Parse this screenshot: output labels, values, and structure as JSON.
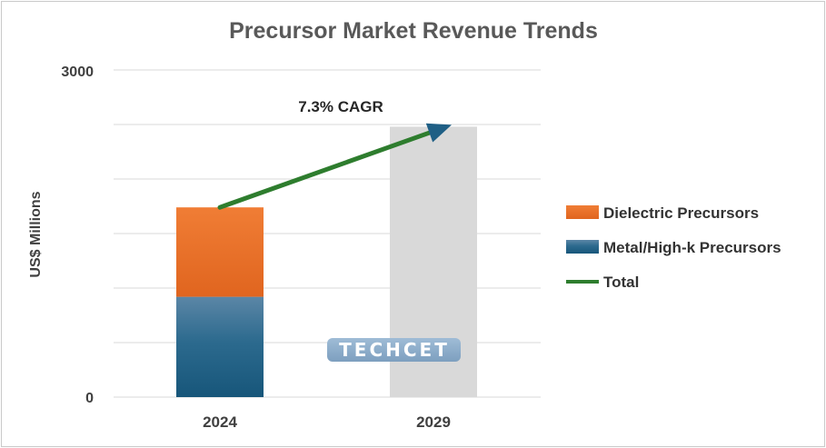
{
  "colors": {
    "dielectric": "#e8702a",
    "metal": "#1f5f85",
    "future": "#d9d9d9",
    "total_line": "#2e7d2e",
    "arrow_head": "#1f5f85",
    "grid": "#d9d9d9"
  },
  "chart_data": {
    "type": "bar",
    "title": "Precursor Market Revenue Trends",
    "xlabel": "",
    "ylabel": "US$ Millions",
    "ylim": [
      0,
      3000
    ],
    "yticks_labeled": [
      "0",
      "3000"
    ],
    "gridlines": [
      0,
      500,
      1000,
      1500,
      2000,
      2500,
      3000
    ],
    "categories": [
      "2024",
      "2029"
    ],
    "series": [
      {
        "name": "Metal/High-k Precursors",
        "values": [
          920,
          null
        ]
      },
      {
        "name": "Dielectric Precursors",
        "values": [
          820,
          null
        ]
      },
      {
        "name": "",
        "values": [
          null,
          2480
        ]
      }
    ],
    "total_line": {
      "name": "Total",
      "x": [
        "2024",
        "2029"
      ],
      "y": [
        1740,
        2480
      ]
    },
    "annotation": "7.3% CAGR",
    "legend": {
      "placement": "right",
      "entries": [
        {
          "label": "Dielectric Precursors",
          "marker": "square",
          "color_key": "dielectric"
        },
        {
          "label": "Metal/High-k Precursors",
          "marker": "square",
          "color_key": "metal"
        },
        {
          "label": "Total",
          "marker": "line",
          "color_key": "total_line"
        }
      ]
    },
    "watermark": "TECHCET"
  }
}
